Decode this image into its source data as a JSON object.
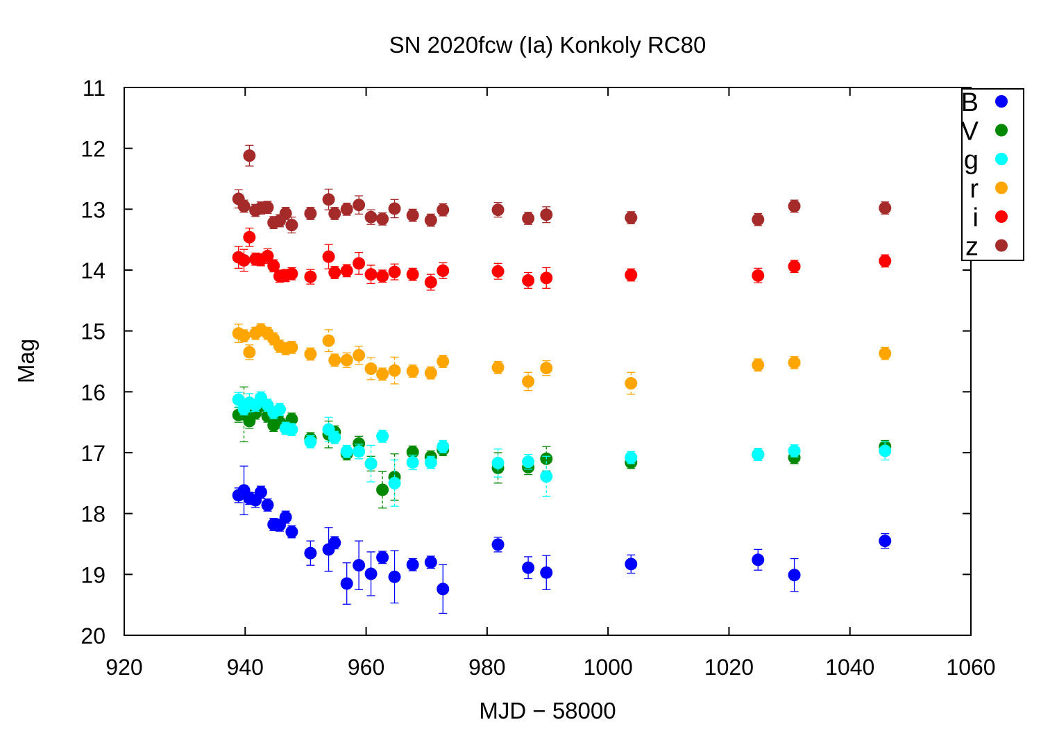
{
  "chart_data": {
    "type": "scatter",
    "title": "SN 2020fcw (Ia) Konkoly RC80",
    "xlabel": "MJD − 58000",
    "ylabel": "Mag",
    "xlim": [
      920,
      1060
    ],
    "ylim": [
      11,
      20
    ],
    "y_inverted": true,
    "x_ticks": [
      "920",
      "940",
      "960",
      "980",
      "1000",
      "1020",
      "1040",
      "1060"
    ],
    "y_ticks": [
      "11",
      "12",
      "13",
      "14",
      "15",
      "16",
      "17",
      "18",
      "19",
      "20"
    ],
    "grid": false,
    "legend_position": "top-right",
    "error_bars": true,
    "series": [
      {
        "name": "B",
        "color": "#0000ff",
        "points": [
          [
            938.9,
            17.7,
            0.12
          ],
          [
            939.8,
            17.62,
            0.4
          ],
          [
            940.7,
            17.75,
            0.1
          ],
          [
            941.7,
            17.78,
            0.12
          ],
          [
            942.6,
            17.65,
            0.1
          ],
          [
            943.7,
            17.86,
            0.1
          ],
          [
            944.7,
            18.18,
            0.1
          ],
          [
            945.7,
            18.19,
            0.1
          ],
          [
            946.7,
            18.06,
            0.1
          ],
          [
            947.7,
            18.3,
            0.1
          ],
          [
            950.8,
            18.65,
            0.2
          ],
          [
            953.8,
            18.59,
            0.36
          ],
          [
            954.8,
            18.48,
            0.1
          ],
          [
            956.8,
            19.15,
            0.34
          ],
          [
            958.8,
            18.85,
            0.4
          ],
          [
            960.8,
            18.99,
            0.36
          ],
          [
            962.7,
            18.72,
            0.1
          ],
          [
            964.7,
            19.04,
            0.43
          ],
          [
            967.7,
            18.84,
            0.1
          ],
          [
            970.7,
            18.8,
            0.1
          ],
          [
            972.7,
            19.24,
            0.4
          ],
          [
            981.8,
            18.51,
            0.12
          ],
          [
            986.8,
            18.89,
            0.18
          ],
          [
            989.8,
            18.97,
            0.28
          ],
          [
            1003.8,
            18.83,
            0.15
          ],
          [
            1024.8,
            18.76,
            0.17
          ],
          [
            1030.8,
            19.01,
            0.27
          ],
          [
            1045.8,
            18.45,
            0.12
          ]
        ]
      },
      {
        "name": "V",
        "color": "#008800",
        "points": [
          [
            938.9,
            16.38,
            0.12
          ],
          [
            939.8,
            16.37,
            0.45
          ],
          [
            940.7,
            16.48,
            0.12
          ],
          [
            941.7,
            16.35,
            0.1
          ],
          [
            942.6,
            16.22,
            0.1
          ],
          [
            943.7,
            16.4,
            0.1
          ],
          [
            944.7,
            16.55,
            0.1
          ],
          [
            945.7,
            16.5,
            0.1
          ],
          [
            946.7,
            16.58,
            0.1
          ],
          [
            947.7,
            16.45,
            0.1
          ],
          [
            950.8,
            16.77,
            0.1
          ],
          [
            953.8,
            16.7,
            0.22
          ],
          [
            954.8,
            16.66,
            0.1
          ],
          [
            956.8,
            17.02,
            0.1
          ],
          [
            958.8,
            16.85,
            0.12
          ],
          [
            960.8,
            17.18,
            0.12
          ],
          [
            962.7,
            17.61,
            0.3
          ],
          [
            964.7,
            17.4,
            0.38
          ],
          [
            967.7,
            16.99,
            0.1
          ],
          [
            970.7,
            17.07,
            0.1
          ],
          [
            972.7,
            16.95,
            0.1
          ],
          [
            981.8,
            17.25,
            0.25
          ],
          [
            986.8,
            17.24,
            0.12
          ],
          [
            989.8,
            17.1,
            0.2
          ],
          [
            1003.8,
            17.16,
            0.1
          ],
          [
            1024.8,
            17.03,
            0.1
          ],
          [
            1030.8,
            17.08,
            0.1
          ],
          [
            1045.8,
            16.9,
            0.1
          ]
        ]
      },
      {
        "name": "g",
        "color": "#00ffff",
        "points": [
          [
            938.9,
            16.13,
            0.12
          ],
          [
            939.8,
            16.28,
            0.1
          ],
          [
            940.7,
            16.18,
            0.15
          ],
          [
            941.7,
            16.22,
            0.1
          ],
          [
            942.6,
            16.1,
            0.1
          ],
          [
            943.7,
            16.22,
            0.1
          ],
          [
            944.7,
            16.34,
            0.1
          ],
          [
            945.7,
            16.29,
            0.1
          ],
          [
            946.7,
            16.6,
            0.1
          ],
          [
            947.7,
            16.62,
            0.1
          ],
          [
            950.8,
            16.82,
            0.1
          ],
          [
            953.8,
            16.62,
            0.2
          ],
          [
            954.8,
            16.75,
            0.1
          ],
          [
            956.8,
            16.98,
            0.1
          ],
          [
            958.8,
            16.98,
            0.12
          ],
          [
            960.8,
            17.18,
            0.3
          ],
          [
            962.7,
            16.73,
            0.1
          ],
          [
            964.7,
            17.5,
            0.38
          ],
          [
            967.7,
            17.16,
            0.12
          ],
          [
            970.7,
            17.16,
            0.1
          ],
          [
            972.7,
            16.9,
            0.1
          ],
          [
            981.8,
            17.17,
            0.23
          ],
          [
            986.8,
            17.15,
            0.12
          ],
          [
            989.8,
            17.39,
            0.33
          ],
          [
            1003.8,
            17.08,
            0.1
          ],
          [
            1024.8,
            17.03,
            0.1
          ],
          [
            1030.8,
            16.97,
            0.1
          ],
          [
            1045.8,
            16.97,
            0.15
          ]
        ]
      },
      {
        "name": "r",
        "color": "#ffa500",
        "points": [
          [
            938.9,
            15.04,
            0.15
          ],
          [
            939.8,
            15.08,
            0.1
          ],
          [
            940.7,
            15.35,
            0.12
          ],
          [
            941.7,
            15.04,
            0.1
          ],
          [
            942.6,
            14.98,
            0.1
          ],
          [
            943.7,
            15.04,
            0.1
          ],
          [
            944.7,
            15.13,
            0.1
          ],
          [
            945.7,
            15.25,
            0.1
          ],
          [
            946.7,
            15.29,
            0.1
          ],
          [
            947.7,
            15.27,
            0.1
          ],
          [
            950.8,
            15.38,
            0.1
          ],
          [
            953.8,
            15.16,
            0.18
          ],
          [
            954.8,
            15.48,
            0.1
          ],
          [
            956.8,
            15.48,
            0.12
          ],
          [
            958.8,
            15.4,
            0.15
          ],
          [
            960.8,
            15.62,
            0.18
          ],
          [
            962.7,
            15.71,
            0.1
          ],
          [
            964.7,
            15.65,
            0.22
          ],
          [
            967.7,
            15.66,
            0.1
          ],
          [
            970.7,
            15.69,
            0.1
          ],
          [
            972.7,
            15.5,
            0.1
          ],
          [
            981.8,
            15.6,
            0.1
          ],
          [
            986.8,
            15.83,
            0.15
          ],
          [
            989.8,
            15.61,
            0.12
          ],
          [
            1003.8,
            15.86,
            0.18
          ],
          [
            1024.8,
            15.56,
            0.1
          ],
          [
            1030.8,
            15.52,
            0.1
          ],
          [
            1045.8,
            15.37,
            0.1
          ]
        ]
      },
      {
        "name": "i",
        "color": "#ff0000",
        "points": [
          [
            938.9,
            13.79,
            0.18
          ],
          [
            939.8,
            13.84,
            0.18
          ],
          [
            940.7,
            13.46,
            0.15
          ],
          [
            941.7,
            13.82,
            0.1
          ],
          [
            942.6,
            13.83,
            0.1
          ],
          [
            943.7,
            13.77,
            0.12
          ],
          [
            944.7,
            13.93,
            0.1
          ],
          [
            945.7,
            14.1,
            0.1
          ],
          [
            946.7,
            14.09,
            0.1
          ],
          [
            947.7,
            14.06,
            0.1
          ],
          [
            950.8,
            14.11,
            0.12
          ],
          [
            953.8,
            13.78,
            0.2
          ],
          [
            954.8,
            14.04,
            0.1
          ],
          [
            956.8,
            14.01,
            0.1
          ],
          [
            958.8,
            13.89,
            0.18
          ],
          [
            960.8,
            14.07,
            0.15
          ],
          [
            962.7,
            14.1,
            0.1
          ],
          [
            964.7,
            14.03,
            0.13
          ],
          [
            967.7,
            14.07,
            0.1
          ],
          [
            970.7,
            14.2,
            0.13
          ],
          [
            972.7,
            14.01,
            0.13
          ],
          [
            981.8,
            14.02,
            0.13
          ],
          [
            986.8,
            14.17,
            0.13
          ],
          [
            989.8,
            14.13,
            0.17
          ],
          [
            1003.8,
            14.08,
            0.1
          ],
          [
            1024.8,
            14.09,
            0.12
          ],
          [
            1030.8,
            13.94,
            0.1
          ],
          [
            1045.8,
            13.85,
            0.1
          ]
        ]
      },
      {
        "name": "z",
        "color": "#a52a2a",
        "points": [
          [
            938.9,
            12.83,
            0.15
          ],
          [
            939.8,
            12.95,
            0.1
          ],
          [
            940.7,
            12.12,
            0.17
          ],
          [
            941.7,
            13.02,
            0.1
          ],
          [
            942.6,
            12.98,
            0.1
          ],
          [
            943.7,
            12.97,
            0.1
          ],
          [
            944.7,
            13.22,
            0.1
          ],
          [
            945.7,
            13.19,
            0.1
          ],
          [
            946.7,
            13.07,
            0.1
          ],
          [
            947.7,
            13.26,
            0.13
          ],
          [
            950.8,
            13.07,
            0.1
          ],
          [
            953.8,
            12.84,
            0.17
          ],
          [
            954.8,
            13.07,
            0.1
          ],
          [
            956.8,
            13.0,
            0.1
          ],
          [
            958.8,
            12.93,
            0.15
          ],
          [
            960.8,
            13.13,
            0.12
          ],
          [
            962.7,
            13.16,
            0.1
          ],
          [
            964.7,
            12.99,
            0.15
          ],
          [
            967.7,
            13.1,
            0.1
          ],
          [
            970.7,
            13.18,
            0.1
          ],
          [
            972.7,
            13.01,
            0.1
          ],
          [
            981.8,
            13.01,
            0.12
          ],
          [
            986.8,
            13.15,
            0.1
          ],
          [
            989.8,
            13.09,
            0.13
          ],
          [
            1003.8,
            13.14,
            0.1
          ],
          [
            1024.8,
            13.17,
            0.1
          ],
          [
            1030.8,
            12.95,
            0.1
          ],
          [
            1045.8,
            12.98,
            0.1
          ]
        ]
      }
    ]
  }
}
